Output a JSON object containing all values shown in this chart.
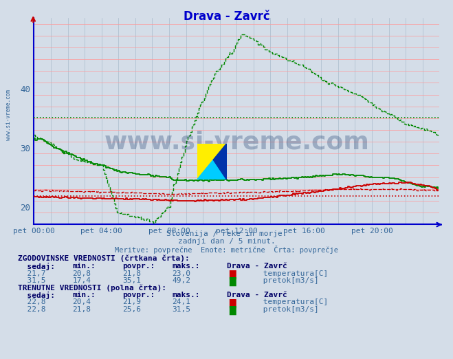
{
  "title": "Drava - Zavrč",
  "title_color": "#0000cc",
  "bg_color": "#d4dde8",
  "plot_bg_color": "#d4dde8",
  "grid_color_h": "#ff9999",
  "grid_color_v": "#aabbcc",
  "xlabel_color": "#336699",
  "axis_color": "#0000cc",
  "xticklabels": [
    "pet 00:00",
    "pet 04:00",
    "pet 08:00",
    "pet 12:00",
    "pet 16:00",
    "pet 20:00"
  ],
  "xtick_positions": [
    0,
    48,
    96,
    144,
    192,
    240
  ],
  "yticks": [
    20,
    30,
    40
  ],
  "ylim_bottom": 17,
  "ylim_top": 52,
  "n_points": 288,
  "temp_hist_avg": 21.8,
  "flow_hist_avg": 35.1,
  "subtitle1": "Slovenija / reke in morje.",
  "subtitle2": "zadnji dan / 5 minut.",
  "subtitle3": "Meritve: povprečne  Enote: metrične  Črta: povprečje",
  "subtitle_color": "#336699",
  "watermark": "www.si-vreme.com",
  "watermark_color": "#1a3a6b",
  "temp_color": "#cc0000",
  "flow_color": "#008800"
}
